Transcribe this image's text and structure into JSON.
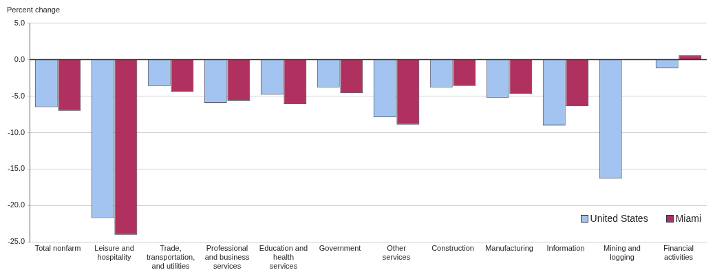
{
  "chart_data": {
    "type": "bar",
    "ylabel": "Percent change",
    "categories": [
      "Total nonfarm",
      "Leisure and hospitality",
      "Trade, transportation, and utilities",
      "Professional and business services",
      "Education and health services",
      "Government",
      "Other services",
      "Construction",
      "Manufacturing",
      "Information",
      "Mining and logging",
      "Financial activities"
    ],
    "series": [
      {
        "name": "United States",
        "color": "#a3c4f0",
        "values": [
          -6.5,
          -21.7,
          -3.6,
          -5.9,
          -4.8,
          -3.8,
          -7.9,
          -3.8,
          -5.2,
          -9.0,
          -16.3,
          -1.2
        ]
      },
      {
        "name": "Miami",
        "color": "#b03060",
        "values": [
          -7.0,
          -24.0,
          -4.4,
          -5.6,
          -6.1,
          -4.6,
          -8.9,
          -3.6,
          -4.7,
          -6.4,
          null,
          0.6
        ]
      }
    ],
    "ylim": [
      -25,
      5
    ],
    "yticks": [
      {
        "value": -25,
        "label": "-25.0"
      },
      {
        "value": -20,
        "label": "-20.0"
      },
      {
        "value": -15,
        "label": "-15.0"
      },
      {
        "value": -10,
        "label": "-10.0"
      },
      {
        "value": -5,
        "label": "-5.0"
      },
      {
        "value": 0,
        "label": "0.0"
      },
      {
        "value": 5,
        "label": "5.0"
      }
    ],
    "grid": "y",
    "legend": "bottom right"
  }
}
